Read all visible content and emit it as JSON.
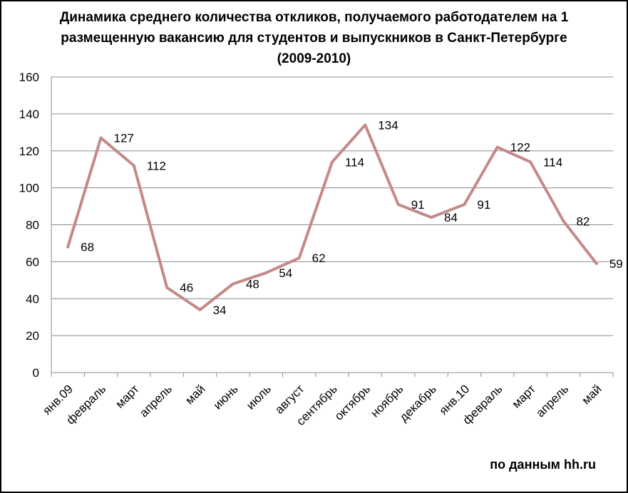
{
  "chart_data": {
    "type": "line",
    "title_lines": [
      "Динамика среднего количества откликов, получаемого работодателем на 1",
      "размещенную вакансию для студентов и выпускников в Санкт-Петербурге",
      "(2009-2010)"
    ],
    "categories": [
      "янв.09",
      "февраль",
      "март",
      "апрель",
      "май",
      "июнь",
      "июль",
      "август",
      "сентябрь",
      "октябрь",
      "ноябрь",
      "декабрь",
      "янв.10",
      "февраль",
      "март",
      "апрель",
      "май"
    ],
    "series": [
      {
        "values": [
          68,
          127,
          112,
          46,
          34,
          48,
          54,
          62,
          114,
          134,
          91,
          84,
          91,
          122,
          114,
          82,
          59
        ]
      }
    ],
    "data_labels": [
      "68",
      "127",
      "112",
      "46",
      "34",
      "48",
      "54",
      "62",
      "114",
      "134",
      "91",
      "84",
      "91",
      "122",
      "114",
      "82",
      "59"
    ],
    "ylim": [
      0,
      160
    ],
    "yticks": [
      0,
      20,
      40,
      60,
      80,
      100,
      120,
      140,
      160
    ],
    "ytick_labels": [
      "0",
      "20",
      "40",
      "60",
      "80",
      "100",
      "120",
      "140",
      "160"
    ],
    "grid": true,
    "legend": "none",
    "line_color": "#C48A89",
    "grid_color": "#8C8C8C"
  },
  "source_note": "по данным hh.ru"
}
